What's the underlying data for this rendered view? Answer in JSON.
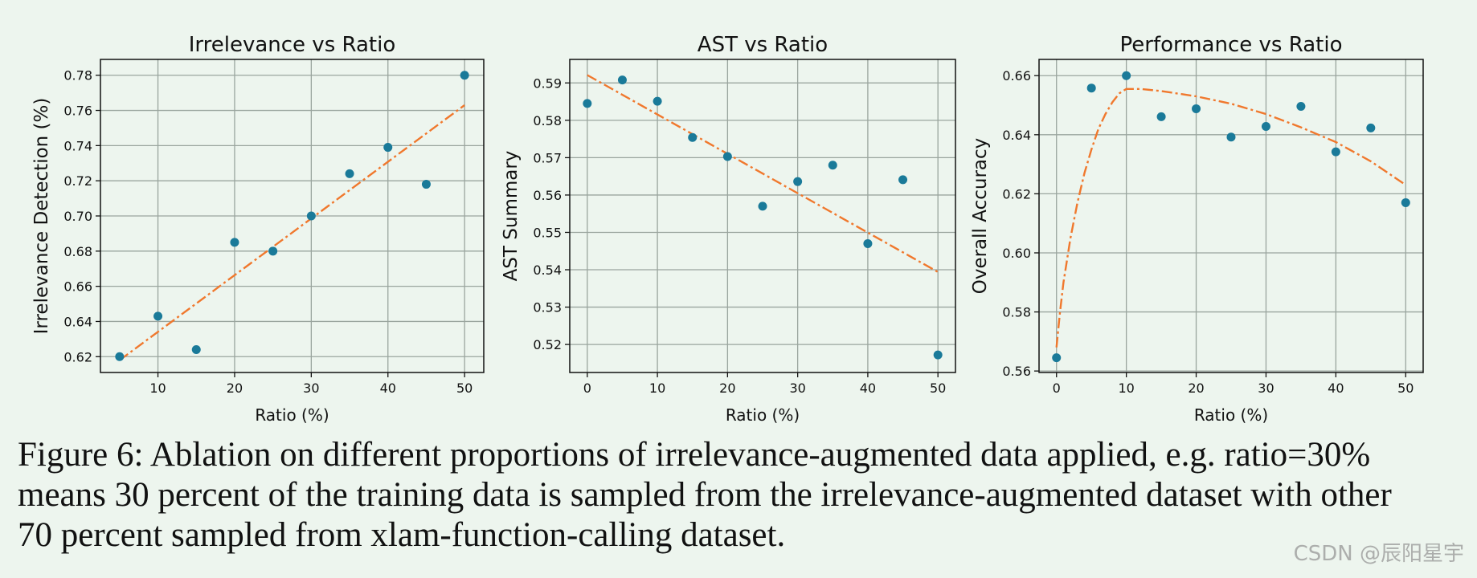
{
  "colors": {
    "points": "#1a7a99",
    "fit": "#f0782d",
    "grid": "#9aa59e",
    "axis": "#111111",
    "background": "#edf5ee"
  },
  "chart_data": [
    {
      "type": "scatter",
      "title": "Irrelevance vs Ratio",
      "xlabel": "Ratio (%)",
      "ylabel": "Irrelevance Detection (%)",
      "xlim": [
        2.5,
        52.5
      ],
      "ylim": [
        0.611,
        0.789
      ],
      "xticks": [
        10,
        20,
        30,
        40,
        50
      ],
      "yticks": [
        0.62,
        0.64,
        0.66,
        0.68,
        0.7,
        0.72,
        0.74,
        0.76,
        0.78
      ],
      "ytick_labels": [
        "0.62",
        "0.64",
        "0.66",
        "0.68",
        "0.70",
        "0.72",
        "0.74",
        "0.76",
        "0.78"
      ],
      "grid": true,
      "x": [
        5,
        10,
        15,
        20,
        25,
        30,
        35,
        40,
        45,
        50
      ],
      "y": [
        0.62,
        0.643,
        0.624,
        0.685,
        0.68,
        0.7,
        0.724,
        0.739,
        0.718,
        0.78
      ],
      "fit": {
        "kind": "linear",
        "x": [
          5,
          50
        ],
        "y": [
          0.618,
          0.763
        ]
      }
    },
    {
      "type": "scatter",
      "title": "AST vs Ratio",
      "xlabel": "Ratio (%)",
      "ylabel": "AST Summary",
      "xlim": [
        -2.5,
        52.5
      ],
      "ylim": [
        0.5125,
        0.5963
      ],
      "xticks": [
        0,
        10,
        20,
        30,
        40,
        50
      ],
      "yticks": [
        0.52,
        0.53,
        0.54,
        0.55,
        0.56,
        0.57,
        0.58,
        0.59
      ],
      "ytick_labels": [
        "0.52",
        "0.53",
        "0.54",
        "0.55",
        "0.56",
        "0.57",
        "0.58",
        "0.59"
      ],
      "grid": true,
      "x": [
        0,
        5,
        10,
        15,
        20,
        25,
        30,
        35,
        40,
        45,
        50
      ],
      "y": [
        0.5845,
        0.5908,
        0.5851,
        0.5754,
        0.5703,
        0.557,
        0.5636,
        0.568,
        0.547,
        0.5641,
        0.5172
      ],
      "fit": {
        "kind": "linear",
        "x": [
          0,
          50
        ],
        "y": [
          0.5921,
          0.5394
        ]
      }
    },
    {
      "type": "scatter",
      "title": "Performance vs Ratio",
      "xlabel": "Ratio (%)",
      "ylabel": "Overall Accuracy",
      "xlim": [
        -2.5,
        52.5
      ],
      "ylim": [
        0.5595,
        0.6655
      ],
      "xticks": [
        0,
        10,
        20,
        30,
        40,
        50
      ],
      "yticks": [
        0.56,
        0.58,
        0.6,
        0.62,
        0.64,
        0.66
      ],
      "ytick_labels": [
        "0.56",
        "0.58",
        "0.60",
        "0.62",
        "0.64",
        "0.66"
      ],
      "grid": true,
      "x": [
        0,
        5,
        10,
        15,
        20,
        25,
        30,
        35,
        40,
        45,
        50
      ],
      "y": [
        0.5645,
        0.6558,
        0.66,
        0.6461,
        0.6488,
        0.6392,
        0.6428,
        0.6496,
        0.6342,
        0.6423,
        0.617
      ],
      "fit": {
        "kind": "curve",
        "x": [
          0,
          0.5,
          1,
          2,
          3,
          4,
          5,
          6,
          7,
          8,
          9,
          10,
          12,
          15,
          20,
          25,
          30,
          35,
          40,
          45,
          50
        ],
        "y": [
          0.568,
          0.58,
          0.59,
          0.605,
          0.617,
          0.627,
          0.635,
          0.642,
          0.647,
          0.651,
          0.654,
          0.6555,
          0.6555,
          0.6548,
          0.653,
          0.6505,
          0.647,
          0.6425,
          0.6375,
          0.631,
          0.623
        ]
      }
    }
  ],
  "caption": {
    "lines": [
      "Figure 6: Ablation on different proportions of irrelevance-augmented data applied, e.g. ratio=30%",
      "means 30 percent of the training data is sampled from the irrelevance-augmented dataset with other",
      "70 percent sampled from xlam-function-calling dataset."
    ]
  },
  "watermark": "CSDN @辰阳星宇"
}
